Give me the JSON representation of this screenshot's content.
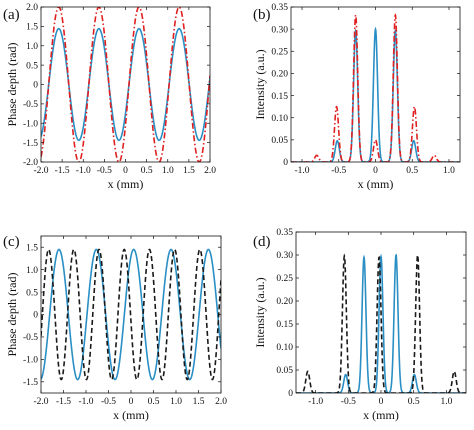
{
  "chart_data": [
    {
      "panel_label": "(a)",
      "type": "line",
      "xlabel": "x (mm)",
      "ylabel": "Phase depth (rad)",
      "xlim": [
        -2.0,
        2.0
      ],
      "ylim": [
        -2.0,
        2.0
      ],
      "xticks": [
        "-2.0",
        "-1.5",
        "-1.0",
        "-0.5",
        "0",
        "0.5",
        "1.0",
        "1.5",
        "2.0"
      ],
      "yticks": [
        "-2.0",
        "-1.5",
        "-1.0",
        "-0.5",
        "0",
        "0.5",
        "1.0",
        "1.5",
        "2.0"
      ],
      "series": [
        {
          "color": "#2a8fc4",
          "style": "solid",
          "kind": "sine",
          "amplitude": 1.44,
          "period_mm": 0.95,
          "phase_x0": -1.58
        },
        {
          "color": "#e02020",
          "style": "dashdot",
          "kind": "sine",
          "amplitude": 2.0,
          "period_mm": 0.95,
          "phase_x0": -1.58
        }
      ]
    },
    {
      "panel_label": "(b)",
      "type": "line",
      "xlabel": "x (mm)",
      "ylabel": "Intensity (a.u.)",
      "xlim": [
        -1.15,
        1.15
      ],
      "ylim": [
        0,
        0.35
      ],
      "xticks": [
        "-1.0",
        "-0.5",
        "0",
        "0.5",
        "1.0"
      ],
      "yticks": [
        "0",
        "0.05",
        "0.10",
        "0.15",
        "0.20",
        "0.25",
        "0.30",
        "0.35"
      ],
      "peak_width_mm": 0.028,
      "series": [
        {
          "color": "#2a8fc4",
          "style": "solid",
          "kind": "peaks",
          "peaks": [
            [
              -0.52,
              0.048
            ],
            [
              -0.27,
              0.297
            ],
            [
              0.0,
              0.3
            ],
            [
              0.27,
              0.297
            ],
            [
              0.52,
              0.048
            ]
          ]
        },
        {
          "color": "#e02020",
          "style": "dashdot",
          "kind": "peaks",
          "peaks": [
            [
              -0.8,
              0.015
            ],
            [
              -0.53,
              0.125
            ],
            [
              -0.27,
              0.332
            ],
            [
              0.0,
              0.05
            ],
            [
              0.27,
              0.332
            ],
            [
              0.53,
              0.125
            ],
            [
              0.8,
              0.015
            ]
          ]
        }
      ]
    },
    {
      "panel_label": "(c)",
      "type": "line",
      "xlabel": "x (mm)",
      "ylabel": "Phase depth (rad)",
      "xlim": [
        -2.0,
        2.0
      ],
      "ylim": [
        -1.75,
        1.75
      ],
      "xticks": [
        "-2.0",
        "-1.5",
        "-1.0",
        "-0.5",
        "0",
        "0.5",
        "1.0",
        "1.5",
        "2.0"
      ],
      "yticks": [
        "-1.5",
        "-1.0",
        "-0.5",
        "0",
        "0.5",
        "1.0",
        "1.5"
      ],
      "series": [
        {
          "color": "#2a8fc4",
          "style": "solid",
          "kind": "sine",
          "amplitude": 1.45,
          "period_mm": 0.83,
          "phase_x0": -1.6
        },
        {
          "color": "#1a1a1a",
          "style": "dashed",
          "kind": "sine",
          "amplitude": 1.45,
          "period_mm": 0.56,
          "phase_x0": -1.83
        }
      ]
    },
    {
      "panel_label": "(d)",
      "type": "line",
      "xlabel": "x (mm)",
      "ylabel": "Intensity (a.u.)",
      "xlim": [
        -1.3,
        1.3
      ],
      "ylim": [
        0,
        0.35
      ],
      "xticks": [
        "-1.0",
        "-0.5",
        "0",
        "0.5",
        "1.0"
      ],
      "yticks": [
        "0",
        "0.05",
        "0.10",
        "0.15",
        "0.20",
        "0.25",
        "0.30",
        "0.35"
      ],
      "peak_width_mm": 0.03,
      "series": [
        {
          "color": "#2a8fc4",
          "style": "solid",
          "kind": "peaks",
          "peaks": [
            [
              -0.54,
              0.04
            ],
            [
              -0.26,
              0.295
            ],
            [
              0.0,
              0.297
            ],
            [
              0.23,
              0.3
            ],
            [
              0.51,
              0.04
            ]
          ]
        },
        {
          "color": "#1a1a1a",
          "style": "dashed",
          "kind": "peaks",
          "peaks": [
            [
              -1.12,
              0.047
            ],
            [
              -0.56,
              0.298
            ],
            [
              -0.03,
              0.295
            ],
            [
              0.56,
              0.3
            ],
            [
              1.12,
              0.047
            ]
          ]
        }
      ]
    }
  ]
}
